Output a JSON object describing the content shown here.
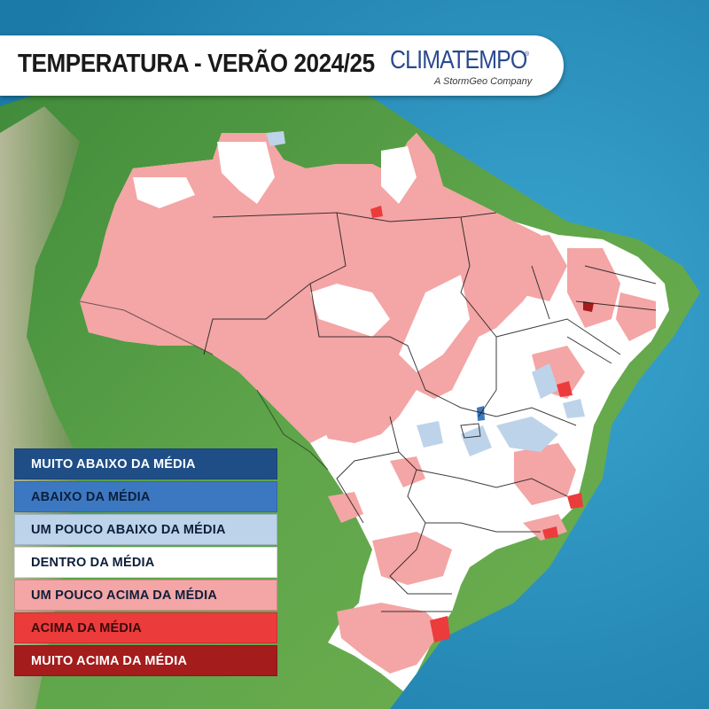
{
  "header": {
    "title": "TEMPERATURA - VERÃO 2024/25",
    "logo_name": "CLIMATEMPO",
    "logo_mark": "®",
    "logo_tagline": "A StormGeo Company"
  },
  "legend": {
    "items": [
      {
        "label": "MUITO ABAIXO DA MÉDIA",
        "color": "#1f4e87",
        "text_color": "#ffffff"
      },
      {
        "label": "ABAIXO DA MÉDIA",
        "color": "#3c78c2",
        "text_color": "#0d1f3a"
      },
      {
        "label": "UM POUCO ABAIXO DA MÉDIA",
        "color": "#bdd3ea",
        "text_color": "#0d1f3a"
      },
      {
        "label": "DENTRO DA MÉDIA",
        "color": "#ffffff",
        "text_color": "#0d1f3a"
      },
      {
        "label": "UM POUCO ACIMA DA MÉDIA",
        "color": "#f4a5a5",
        "text_color": "#0d1f3a"
      },
      {
        "label": "ACIMA DA MÉDIA",
        "color": "#ec3b3b",
        "text_color": "#3a0a0a"
      },
      {
        "label": "MUITO ACIMA DA MÉDIA",
        "color": "#a41c1c",
        "text_color": "#ffffff"
      }
    ]
  }
}
